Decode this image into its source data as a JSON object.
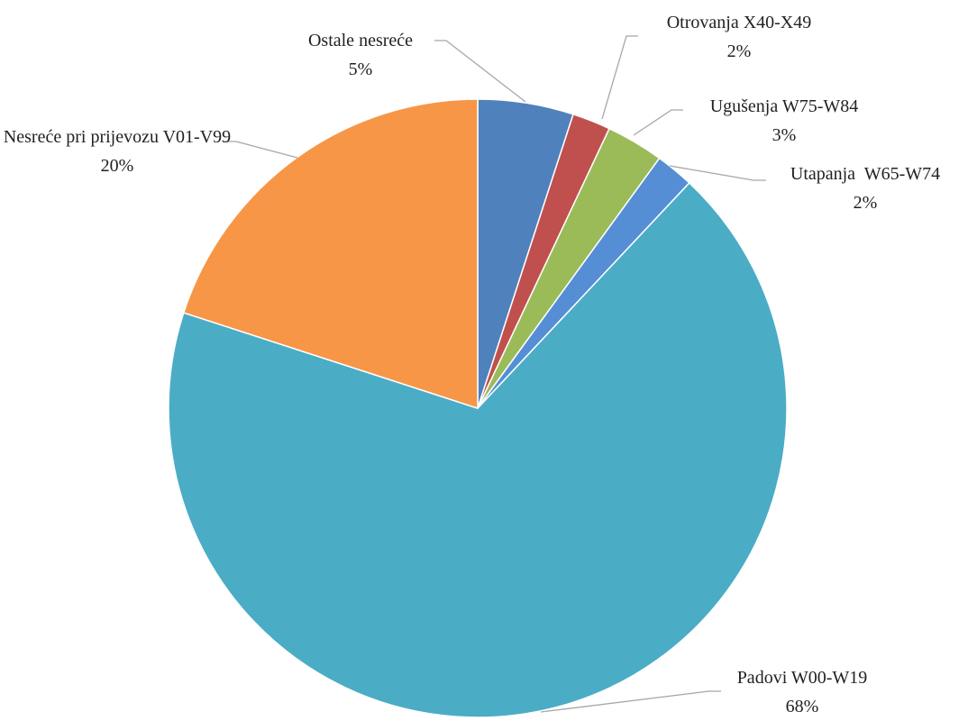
{
  "chart_data": {
    "type": "pie",
    "categories": [
      "Ostale nesreće",
      "Otrovanja X40-X49",
      "Ugušenja W75-W84",
      "Utapanja  W65-W74",
      "Padovi W00-W19",
      "Nesreće pri prijevozu V01-V99"
    ],
    "values": [
      5,
      2,
      3,
      2,
      68,
      20
    ],
    "value_labels": [
      "5%",
      "2%",
      "3%",
      "2%",
      "68%",
      "20%"
    ],
    "colors": [
      "#4f81bd",
      "#c0504d",
      "#9bbb59",
      "#558ed5",
      "#4bacc6",
      "#f79646"
    ]
  }
}
